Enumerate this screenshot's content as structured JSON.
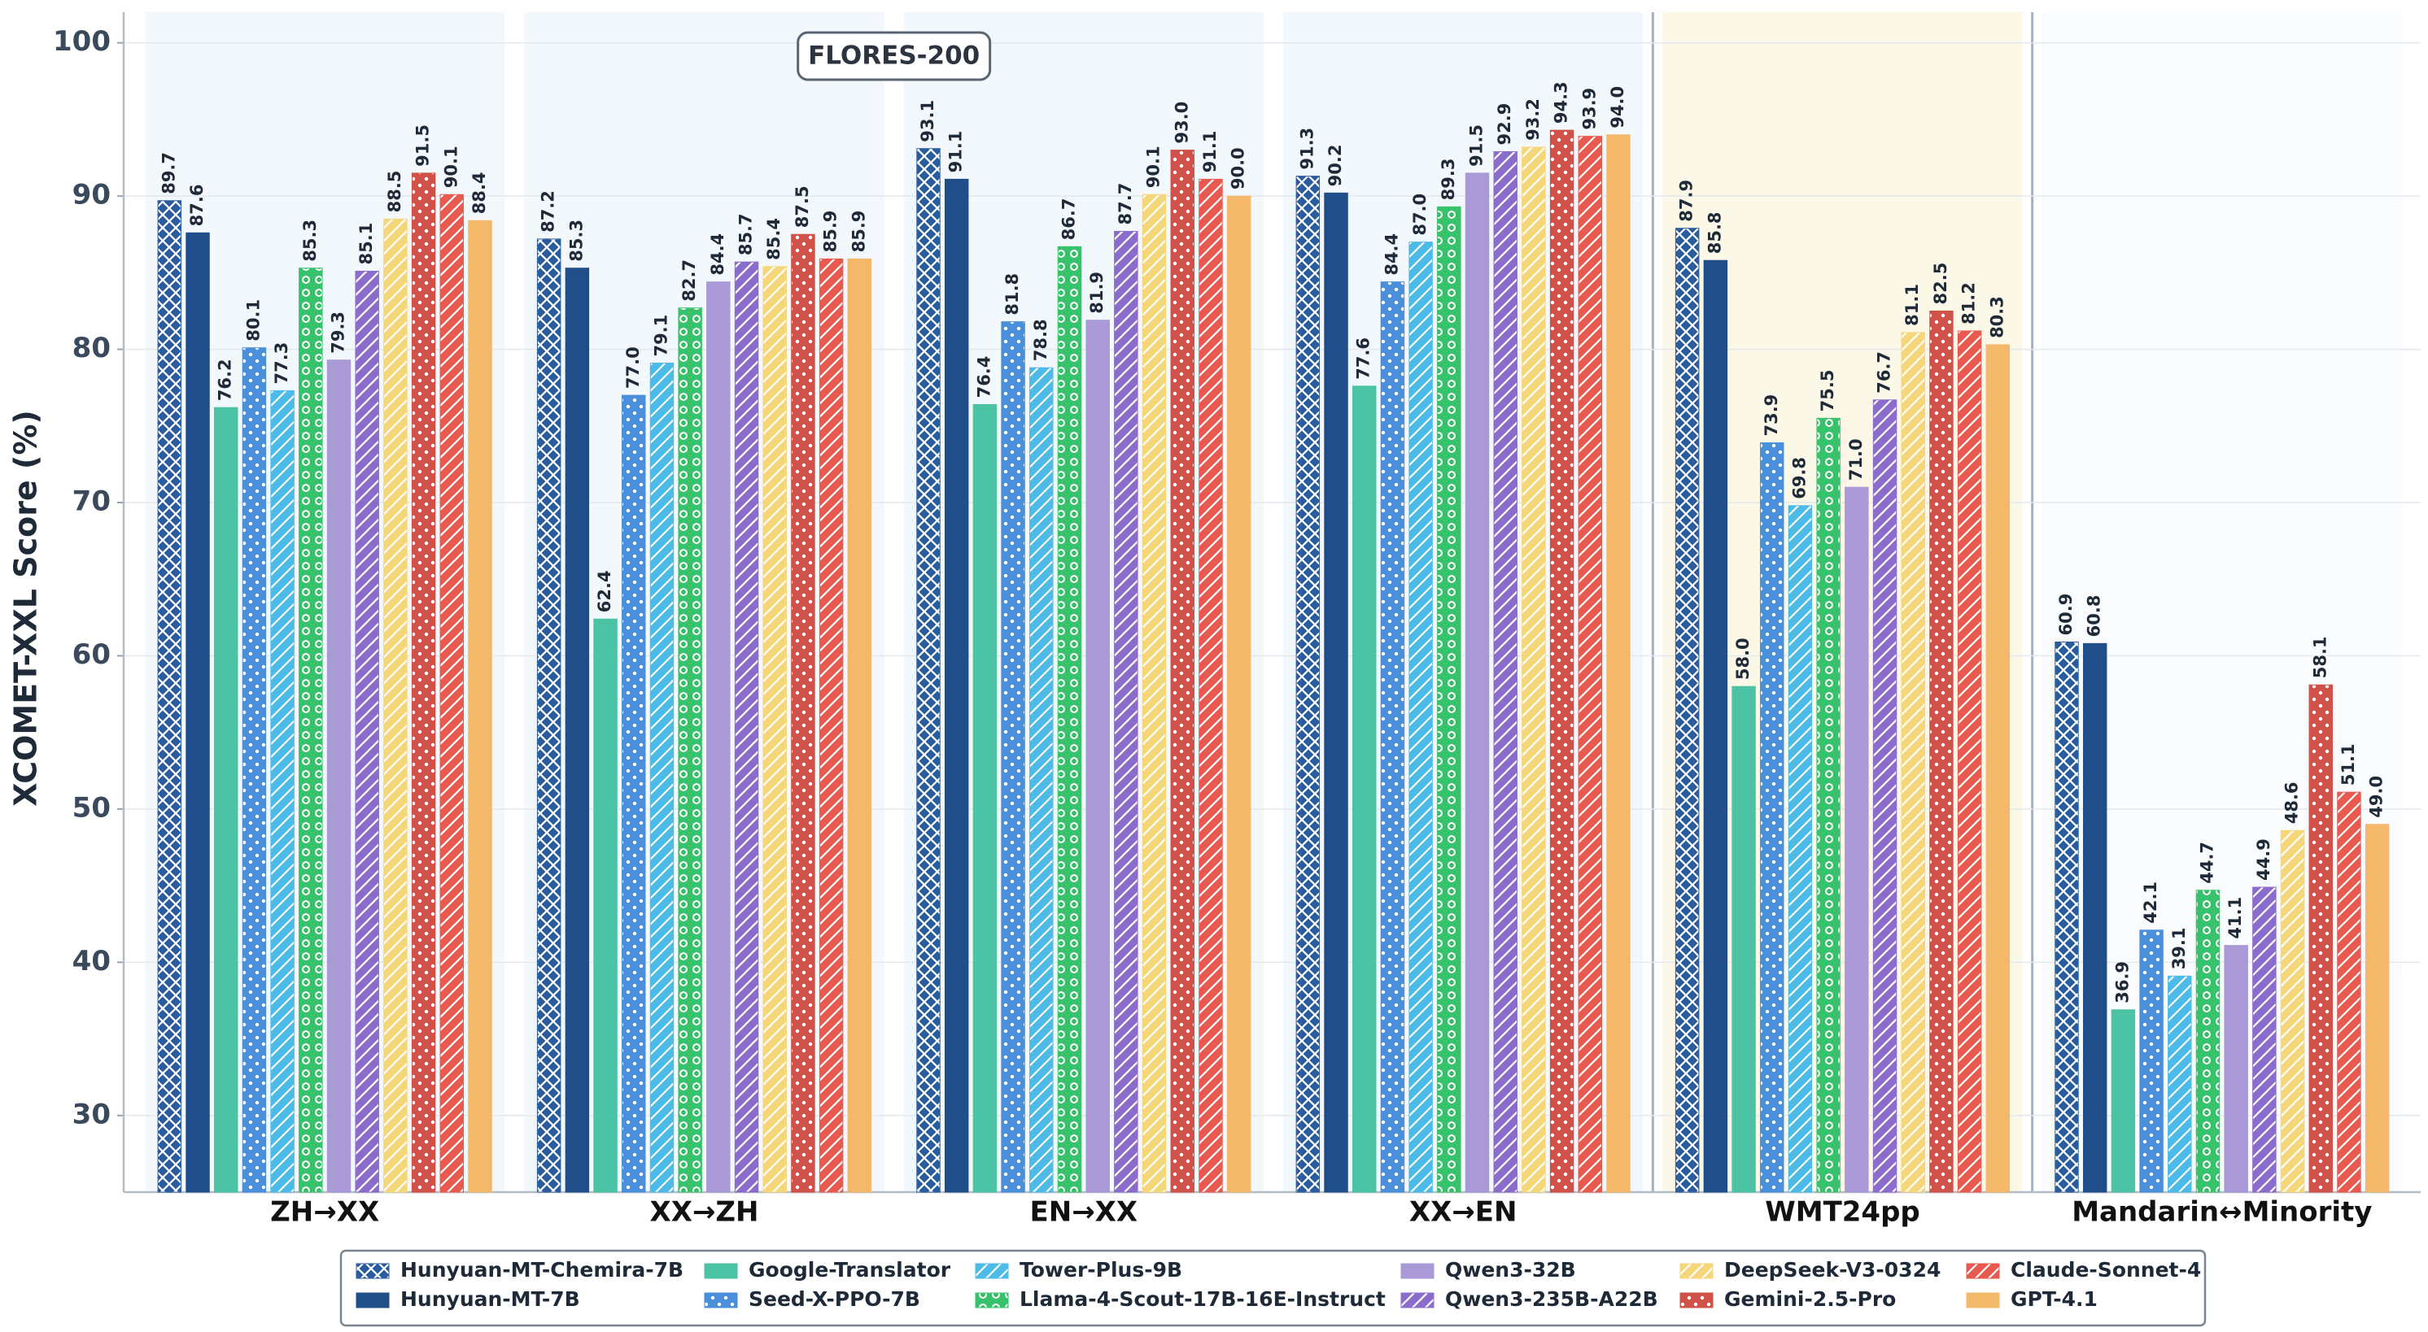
{
  "chart_data": {
    "type": "bar",
    "y_label": "XCOMET-XXL Score (%)",
    "annotation": "FLORES-200",
    "categories": [
      "ZH→XX",
      "XX→ZH",
      "EN→XX",
      "XX→EN",
      "WMT24pp",
      "Mandarin↔Minority"
    ],
    "category_backgrounds": [
      "#f3f8fd",
      "#f3f8fd",
      "#f3f8fd",
      "#f3f8fd",
      "#fcf8e8",
      "#fafbfc"
    ],
    "ylim": [
      25,
      102
    ],
    "yticks": [
      30,
      40,
      50,
      60,
      70,
      80,
      90,
      100
    ],
    "grid": true,
    "legend": "lower center",
    "series": [
      {
        "name": "Hunyuan-MT-Chemira-7B",
        "color": "#2b5c9e",
        "hatch": "x",
        "values": [
          89.7,
          87.2,
          93.1,
          91.3,
          87.9,
          60.9
        ],
        "value_labels": [
          "89.7",
          "87.2",
          "93.1",
          "91.3",
          "87.9",
          "60.9"
        ]
      },
      {
        "name": "Hunyuan-MT-7B",
        "color": "#1f4e89",
        "hatch": "none",
        "values": [
          87.6,
          85.3,
          91.1,
          90.2,
          85.8,
          60.8
        ],
        "value_labels": [
          "87.6",
          "85.3",
          "91.1",
          "90.2",
          "85.8",
          "60.8"
        ]
      },
      {
        "name": "Google-Translator",
        "color": "#4cc3a4",
        "hatch": "none",
        "values": [
          76.2,
          62.4,
          76.4,
          77.6,
          58.0,
          36.9
        ],
        "value_labels": [
          "76.2",
          "62.4",
          "76.4",
          "77.6",
          "58.0",
          "36.9"
        ]
      },
      {
        "name": "Seed-X-PPO-7B",
        "color": "#4a8fd9",
        "hatch": "dots",
        "values": [
          80.1,
          77.0,
          81.8,
          84.4,
          73.9,
          42.1
        ],
        "value_labels": [
          "80.1",
          "77.0",
          "81.8",
          "84.4",
          "73.9",
          "42.1"
        ]
      },
      {
        "name": "Tower-Plus-9B",
        "color": "#4dbbe8",
        "hatch": "diag",
        "values": [
          77.3,
          79.1,
          78.8,
          87.0,
          69.8,
          39.1
        ],
        "value_labels": [
          "77.3",
          "79.1",
          "78.8",
          "87.0",
          "69.8",
          "39.1"
        ]
      },
      {
        "name": "Llama-4-Scout-17B-16E-Instruct",
        "color": "#38c26b",
        "hatch": "rings",
        "values": [
          85.3,
          82.7,
          86.7,
          89.3,
          75.5,
          44.7
        ],
        "value_labels": [
          "85.3",
          "82.7",
          "86.7",
          "89.3",
          "75.5",
          "44.7"
        ]
      },
      {
        "name": "Qwen3-32B",
        "color": "#a999d6",
        "hatch": "none",
        "values": [
          79.3,
          84.4,
          81.9,
          91.5,
          71.0,
          41.1
        ],
        "value_labels": [
          "79.3",
          "84.4",
          "81.9",
          "91.5",
          "71.0",
          "41.1"
        ]
      },
      {
        "name": "Qwen3-235B-A22B",
        "color": "#8b6ccc",
        "hatch": "diag",
        "values": [
          85.1,
          85.7,
          87.7,
          92.9,
          76.7,
          44.9
        ],
        "value_labels": [
          "85.1",
          "85.7",
          "87.7",
          "92.9",
          "76.7",
          "44.9"
        ]
      },
      {
        "name": "DeepSeek-V3-0324",
        "color": "#f5d67a",
        "hatch": "diag",
        "values": [
          88.5,
          85.4,
          90.1,
          93.2,
          81.1,
          48.6
        ],
        "value_labels": [
          "88.5",
          "85.4",
          "90.1",
          "93.2",
          "81.1",
          "48.6"
        ]
      },
      {
        "name": "Gemini-2.5-Pro",
        "color": "#cf5148",
        "hatch": "dots",
        "values": [
          91.5,
          87.5,
          93.0,
          94.3,
          82.5,
          58.1
        ],
        "value_labels": [
          "91.5",
          "87.5",
          "93.0",
          "94.3",
          "82.5",
          "58.1"
        ]
      },
      {
        "name": "Claude-Sonnet-4",
        "color": "#e85a50",
        "hatch": "diag",
        "values": [
          90.1,
          85.9,
          91.1,
          93.9,
          81.2,
          51.1
        ],
        "value_labels": [
          "90.1",
          "85.9",
          "91.1",
          "93.9",
          "81.2",
          "51.1"
        ]
      },
      {
        "name": "GPT-4.1",
        "color": "#f4b86a",
        "hatch": "none",
        "values": [
          88.4,
          85.9,
          90.0,
          94.0,
          80.3,
          49.0
        ],
        "value_labels": [
          "88.4",
          "85.9",
          "90.0",
          "94.0",
          "80.3",
          "49.0"
        ]
      }
    ]
  }
}
